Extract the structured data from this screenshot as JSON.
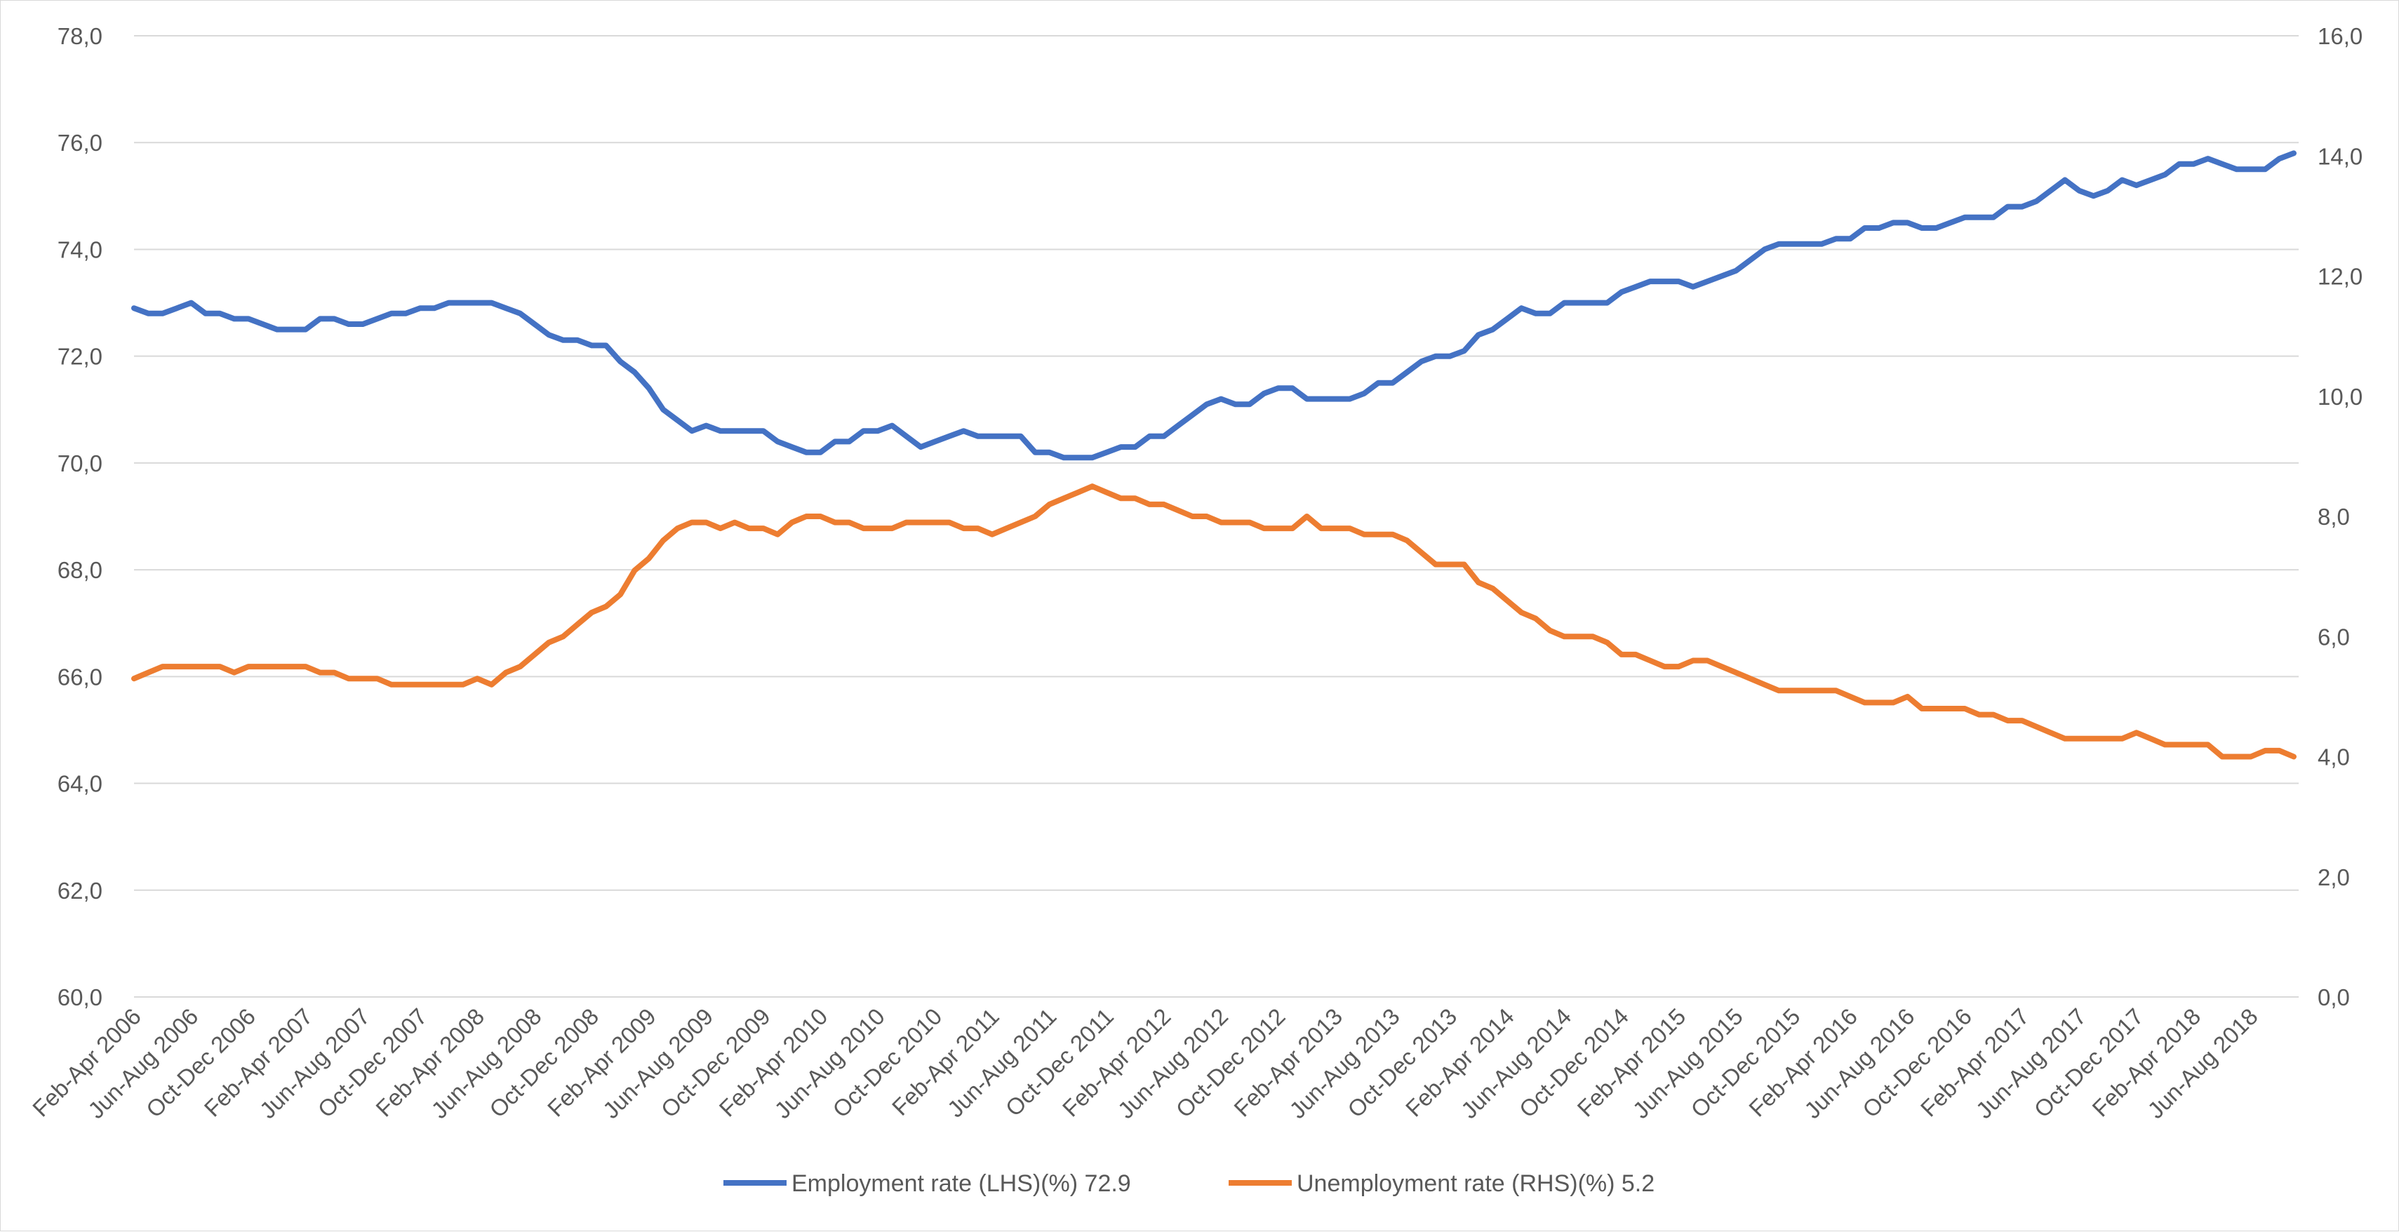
{
  "chart_data": {
    "type": "line",
    "title": "",
    "xlabel": "",
    "ylabel_left": "",
    "ylabel_right": "",
    "ylim_left": [
      60,
      78
    ],
    "ylim_right": [
      0,
      16
    ],
    "y_ticks_left": [
      "60,0",
      "62,0",
      "64,0",
      "66,0",
      "68,0",
      "70,0",
      "72,0",
      "74,0",
      "76,0",
      "78,0"
    ],
    "y_ticks_right": [
      "0,0",
      "2,0",
      "4,0",
      "6,0",
      "8,0",
      "10,0",
      "12,0",
      "14,0",
      "16,0"
    ],
    "grid": true,
    "legend_position": "bottom",
    "x_tick_labels": [
      "Feb-Apr 2006",
      "Jun-Aug 2006",
      "Oct-Dec 2006",
      "Feb-Apr 2007",
      "Jun-Aug 2007",
      "Oct-Dec 2007",
      "Feb-Apr 2008",
      "Jun-Aug 2008",
      "Oct-Dec 2008",
      "Feb-Apr 2009",
      "Jun-Aug 2009",
      "Oct-Dec 2009",
      "Feb-Apr 2010",
      "Jun-Aug 2010",
      "Oct-Dec 2010",
      "Feb-Apr 2011",
      "Jun-Aug 2011",
      "Oct-Dec 2011",
      "Feb-Apr 2012",
      "Jun-Aug 2012",
      "Oct-Dec 2012",
      "Feb-Apr 2013",
      "Jun-Aug 2013",
      "Oct-Dec 2013",
      "Feb-Apr 2014",
      "Jun-Aug 2014",
      "Oct-Dec 2014",
      "Feb-Apr 2015",
      "Jun-Aug 2015",
      "Oct-Dec 2015",
      "Feb-Apr 2016",
      "Jun-Aug 2016",
      "Oct-Dec 2016",
      "Feb-Apr 2017",
      "Jun-Aug 2017",
      "Oct-Dec 2017",
      "Feb-Apr 2018",
      "Jun-Aug 2018"
    ],
    "series": [
      {
        "name": "Employment rate (LHS)(%) 72.9",
        "axis": "left",
        "color": "#4472C4",
        "values": [
          72.9,
          72.8,
          72.8,
          72.9,
          73.0,
          72.8,
          72.8,
          72.7,
          72.7,
          72.6,
          72.5,
          72.5,
          72.5,
          72.7,
          72.7,
          72.6,
          72.6,
          72.7,
          72.8,
          72.8,
          72.9,
          72.9,
          73.0,
          73.0,
          73.0,
          73.0,
          72.9,
          72.8,
          72.6,
          72.4,
          72.3,
          72.3,
          72.2,
          72.2,
          71.9,
          71.7,
          71.4,
          71.0,
          70.8,
          70.6,
          70.7,
          70.6,
          70.6,
          70.6,
          70.6,
          70.4,
          70.3,
          70.2,
          70.2,
          70.4,
          70.4,
          70.6,
          70.6,
          70.7,
          70.5,
          70.3,
          70.4,
          70.5,
          70.6,
          70.5,
          70.5,
          70.5,
          70.5,
          70.2,
          70.2,
          70.1,
          70.1,
          70.1,
          70.2,
          70.3,
          70.3,
          70.5,
          70.5,
          70.7,
          70.9,
          71.1,
          71.2,
          71.1,
          71.1,
          71.3,
          71.4,
          71.4,
          71.2,
          71.2,
          71.2,
          71.2,
          71.3,
          71.5,
          71.5,
          71.7,
          71.9,
          72.0,
          72.0,
          72.1,
          72.4,
          72.5,
          72.7,
          72.9,
          72.8,
          72.8,
          73.0,
          73.0,
          73.0,
          73.0,
          73.2,
          73.3,
          73.4,
          73.4,
          73.4,
          73.3,
          73.4,
          73.5,
          73.6,
          73.8,
          74.0,
          74.1,
          74.1,
          74.1,
          74.1,
          74.2,
          74.2,
          74.4,
          74.4,
          74.5,
          74.5,
          74.4,
          74.4,
          74.5,
          74.6,
          74.6,
          74.6,
          74.8,
          74.8,
          74.9,
          75.1,
          75.3,
          75.1,
          75.0,
          75.1,
          75.3,
          75.2,
          75.3,
          75.4,
          75.6,
          75.6,
          75.7,
          75.6,
          75.5,
          75.5,
          75.5,
          75.7,
          75.8
        ]
      },
      {
        "name": "Unemployment rate (RHS)(%) 5.2",
        "axis": "right",
        "color": "#ED7D31",
        "values": [
          5.3,
          5.4,
          5.5,
          5.5,
          5.5,
          5.5,
          5.5,
          5.4,
          5.5,
          5.5,
          5.5,
          5.5,
          5.5,
          5.4,
          5.4,
          5.3,
          5.3,
          5.3,
          5.2,
          5.2,
          5.2,
          5.2,
          5.2,
          5.2,
          5.3,
          5.2,
          5.4,
          5.5,
          5.7,
          5.9,
          6.0,
          6.2,
          6.4,
          6.5,
          6.7,
          7.1,
          7.3,
          7.6,
          7.8,
          7.9,
          7.9,
          7.8,
          7.9,
          7.8,
          7.8,
          7.7,
          7.9,
          8.0,
          8.0,
          7.9,
          7.9,
          7.8,
          7.8,
          7.8,
          7.9,
          7.9,
          7.9,
          7.9,
          7.8,
          7.8,
          7.7,
          7.8,
          7.9,
          8.0,
          8.2,
          8.3,
          8.4,
          8.5,
          8.4,
          8.3,
          8.3,
          8.2,
          8.2,
          8.1,
          8.0,
          8.0,
          7.9,
          7.9,
          7.9,
          7.8,
          7.8,
          7.8,
          8.0,
          7.8,
          7.8,
          7.8,
          7.7,
          7.7,
          7.7,
          7.6,
          7.4,
          7.2,
          7.2,
          7.2,
          6.9,
          6.8,
          6.6,
          6.4,
          6.3,
          6.1,
          6.0,
          6.0,
          6.0,
          5.9,
          5.7,
          5.7,
          5.6,
          5.5,
          5.5,
          5.6,
          5.6,
          5.5,
          5.4,
          5.3,
          5.2,
          5.1,
          5.1,
          5.1,
          5.1,
          5.1,
          5.0,
          4.9,
          4.9,
          4.9,
          5.0,
          4.8,
          4.8,
          4.8,
          4.8,
          4.7,
          4.7,
          4.6,
          4.6,
          4.5,
          4.4,
          4.3,
          4.3,
          4.3,
          4.3,
          4.3,
          4.4,
          4.3,
          4.2,
          4.2,
          4.2,
          4.2,
          4.0,
          4.0,
          4.0,
          4.1,
          4.1,
          4.0
        ]
      }
    ]
  }
}
